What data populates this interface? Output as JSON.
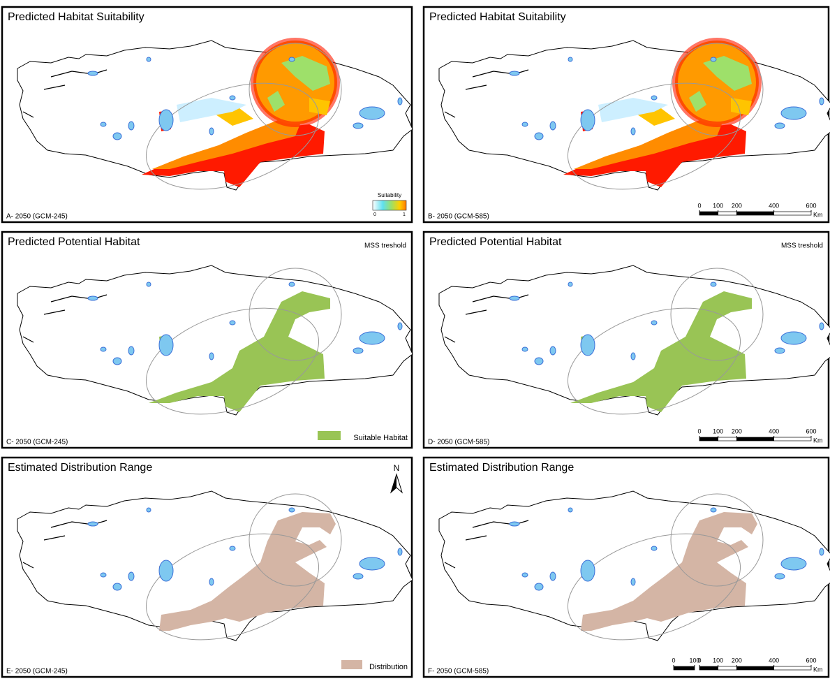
{
  "panels": [
    {
      "title": "Predicted Habitat Suitability",
      "caption": "A- 2050 (GCM-245)",
      "legend": {
        "title": "Suitability",
        "ticks": [
          0,
          1
        ]
      }
    },
    {
      "title": "Predicted Habitat Suitability",
      "caption": "B- 2050 (GCM-585)",
      "scale_bar": {
        "ticks": [
          0,
          100,
          200,
          400,
          600
        ],
        "unit": "Km"
      }
    },
    {
      "title": "Predicted Potential Habitat",
      "caption": "C- 2050 (GCM-245)",
      "note": "MSS treshold",
      "legend": {
        "label": "Suitable Habitat"
      }
    },
    {
      "title": "Predicted Potential Habitat",
      "caption": "D- 2050 (GCM-585)",
      "note": "MSS treshold",
      "scale_bar": {
        "ticks": [
          0,
          100,
          200,
          400,
          600
        ],
        "unit": "Km"
      }
    },
    {
      "title": "Estimated Distribution Range",
      "caption": "E- 2050 (GCM-245)",
      "north_arrow": "N",
      "legend": {
        "label": "Distribution"
      }
    },
    {
      "title": "Estimated Distribution Range",
      "caption": "F- 2050 (GCM-585)",
      "scale_bar": {
        "extra_ticks": [
          0,
          100
        ],
        "ticks": [
          0,
          100,
          200,
          400,
          600
        ],
        "unit": "Km"
      }
    }
  ]
}
